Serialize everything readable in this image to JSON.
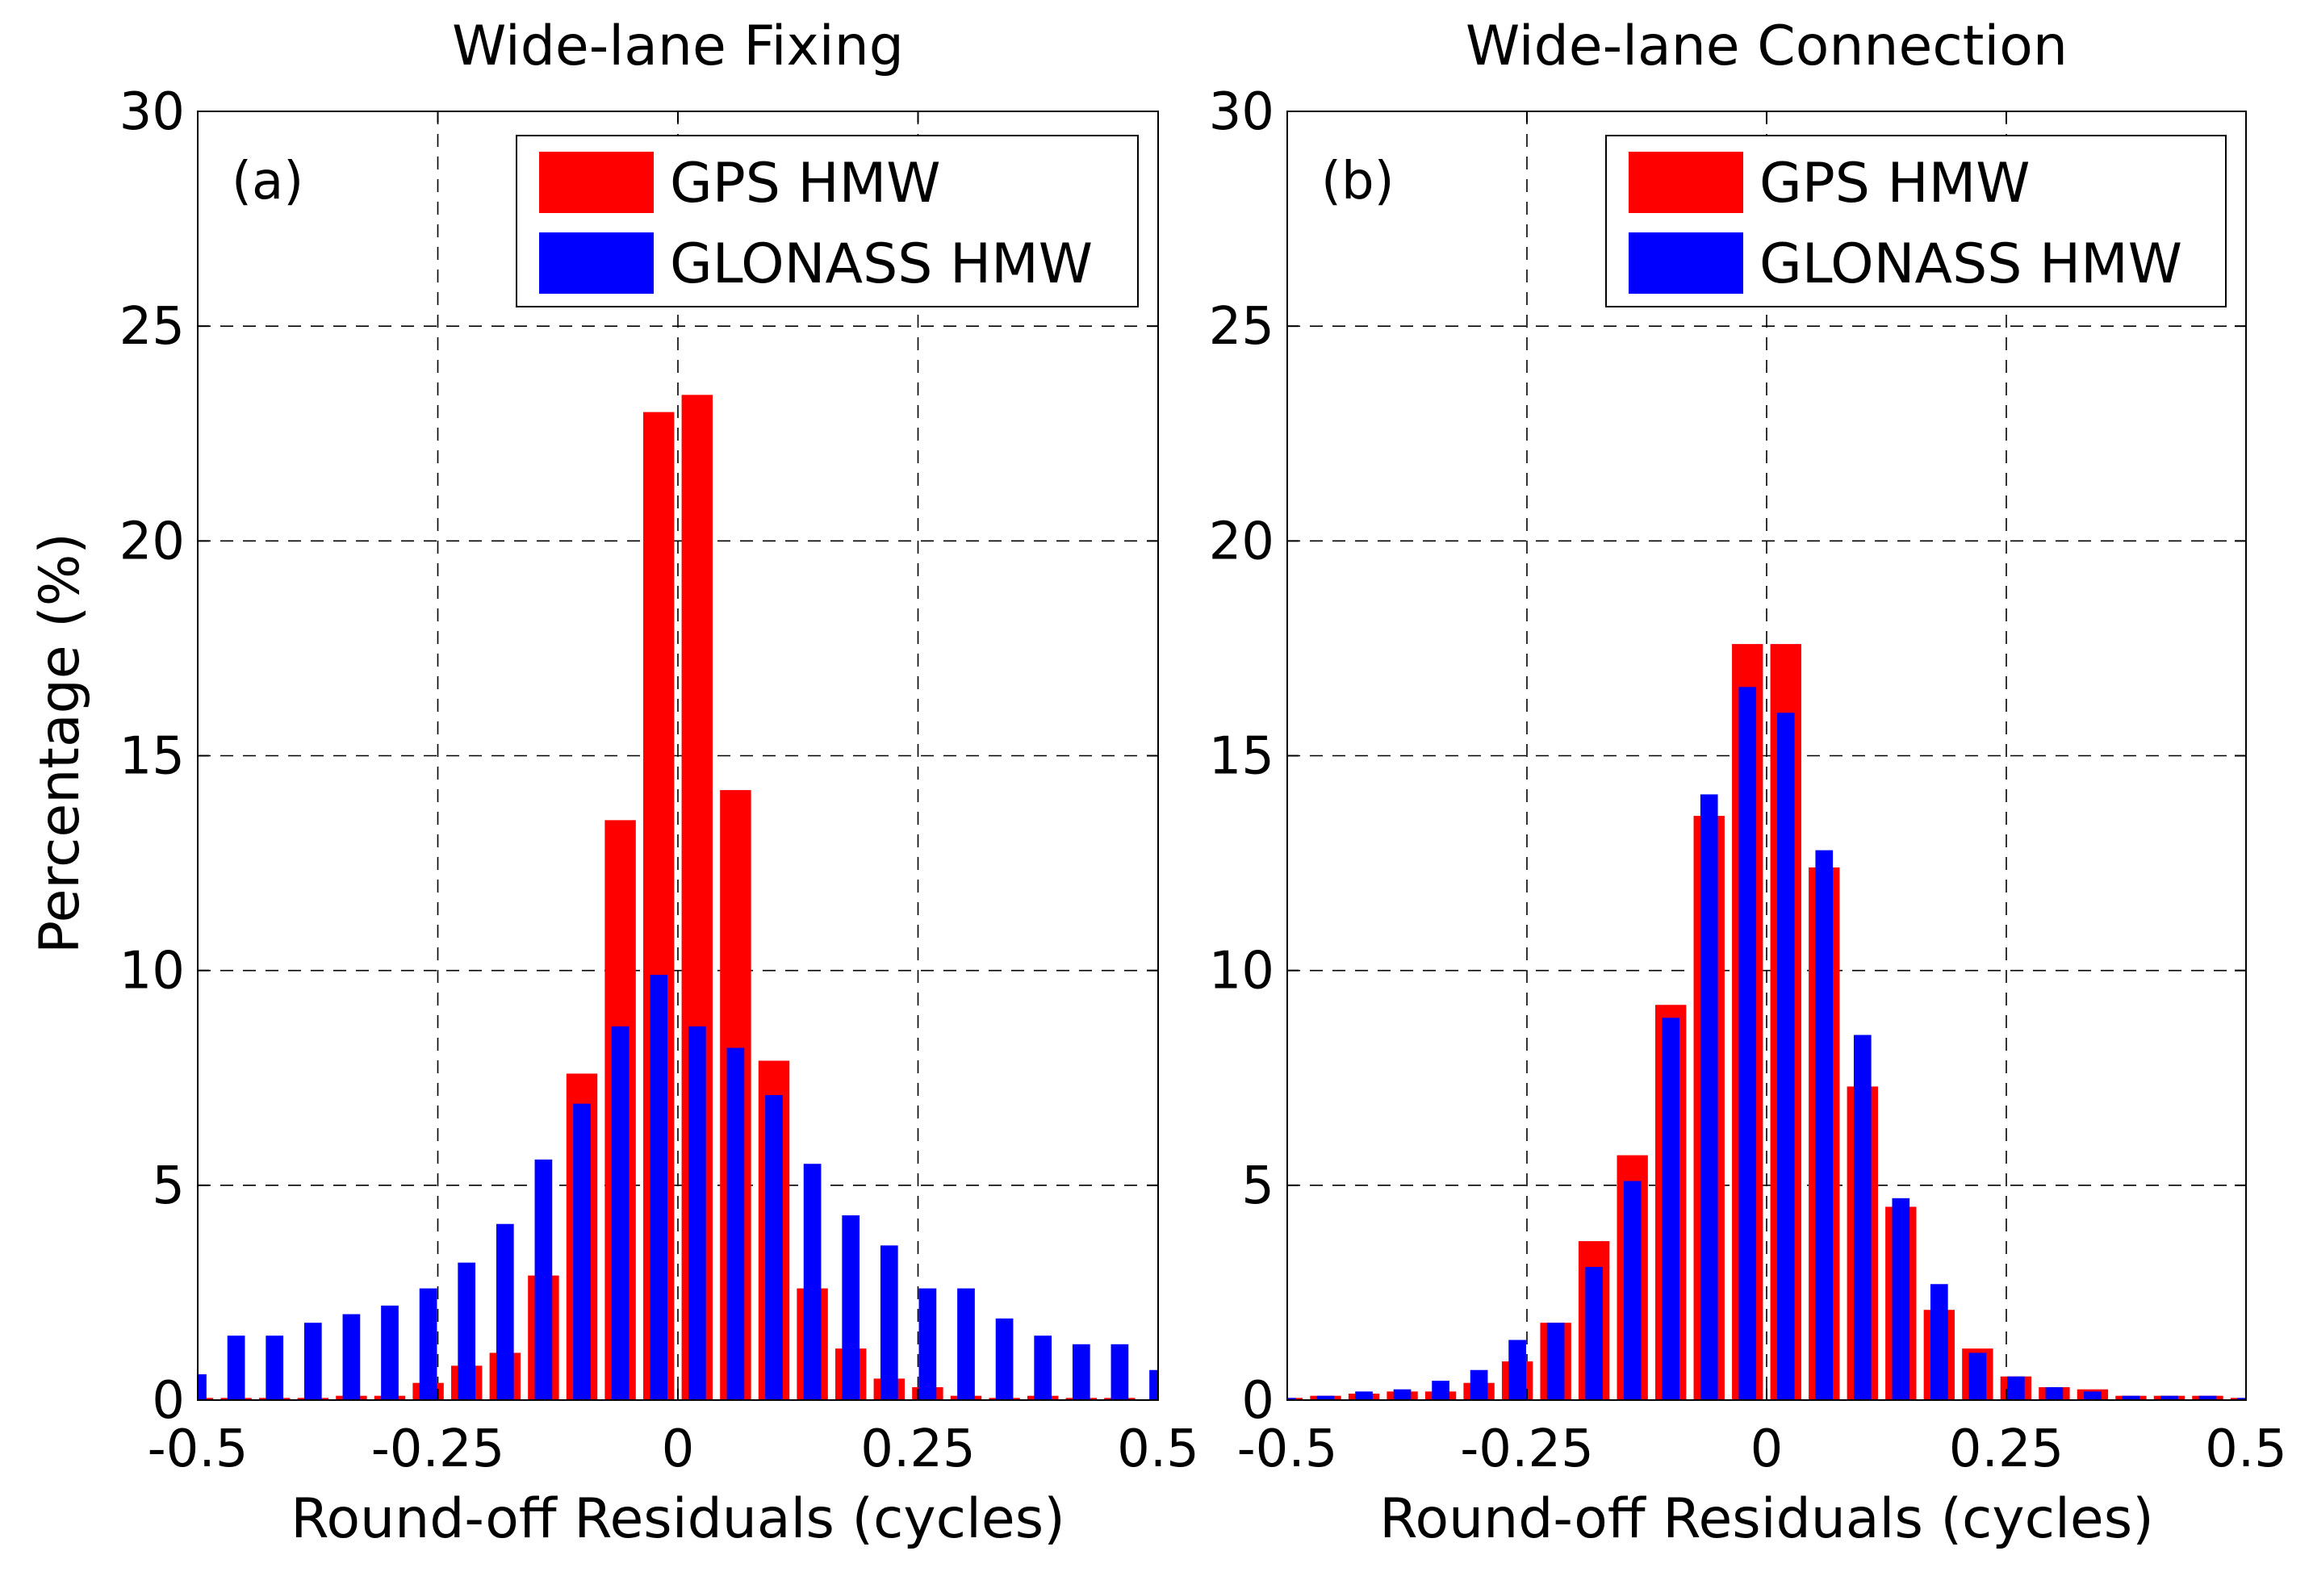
{
  "y_axis_label": "Percentage (%)",
  "colors": {
    "gps": "#ff0000",
    "glonass": "#0000ff"
  },
  "chart_data": [
    {
      "type": "bar",
      "title": "Wide-lane Fixing",
      "panel_label": "(a)",
      "xlabel": "Round-off Residuals (cycles)",
      "ylabel": "Percentage (%)",
      "xlim": [
        -0.5,
        0.5
      ],
      "ylim": [
        0,
        30
      ],
      "xticks": [
        -0.5,
        -0.25,
        0,
        0.25,
        0.5
      ],
      "xtick_labels": [
        "-0.5",
        "-0.25",
        "0",
        "0.25",
        "0.5"
      ],
      "yticks": [
        0,
        5,
        10,
        15,
        20,
        25,
        30
      ],
      "ytick_labels": [
        "0",
        "5",
        "10",
        "15",
        "20",
        "25",
        "30"
      ],
      "grid": true,
      "legend_position": "top-right",
      "bin_width": 0.04,
      "x": [
        -0.5,
        -0.46,
        -0.42,
        -0.38,
        -0.34,
        -0.3,
        -0.26,
        -0.22,
        -0.18,
        -0.14,
        -0.1,
        -0.06,
        -0.02,
        0.02,
        0.06,
        0.1,
        0.14,
        0.18,
        0.22,
        0.26,
        0.3,
        0.34,
        0.38,
        0.42,
        0.46,
        0.5
      ],
      "series": [
        {
          "name": "GPS HMW",
          "values": [
            0.05,
            0.05,
            0.05,
            0.05,
            0.1,
            0.1,
            0.4,
            0.8,
            1.1,
            2.9,
            7.6,
            13.5,
            23.0,
            23.4,
            14.2,
            7.9,
            2.6,
            1.2,
            0.5,
            0.3,
            0.1,
            0.05,
            0.1,
            0.05,
            0.05,
            0.0
          ]
        },
        {
          "name": "GLONASS HMW",
          "values": [
            0.6,
            1.5,
            1.5,
            1.8,
            2.0,
            2.2,
            2.6,
            3.2,
            4.1,
            5.6,
            6.9,
            8.7,
            9.9,
            8.7,
            8.2,
            7.1,
            5.5,
            4.3,
            3.6,
            2.6,
            2.6,
            1.9,
            1.5,
            1.3,
            1.3,
            0.7
          ]
        }
      ]
    },
    {
      "type": "bar",
      "title": "Wide-lane Connection",
      "panel_label": "(b)",
      "xlabel": "Round-off Residuals (cycles)",
      "ylabel": "",
      "xlim": [
        -0.5,
        0.5
      ],
      "ylim": [
        0,
        30
      ],
      "xticks": [
        -0.5,
        -0.25,
        0,
        0.25,
        0.5
      ],
      "xtick_labels": [
        "-0.5",
        "-0.25",
        "0",
        "0.25",
        "0.5"
      ],
      "yticks": [
        0,
        5,
        10,
        15,
        20,
        25,
        30
      ],
      "ytick_labels": [
        "0",
        "5",
        "10",
        "15",
        "20",
        "25",
        "30"
      ],
      "grid": true,
      "legend_position": "top-right",
      "bin_width": 0.04,
      "x": [
        -0.5,
        -0.46,
        -0.42,
        -0.38,
        -0.34,
        -0.3,
        -0.26,
        -0.22,
        -0.18,
        -0.14,
        -0.1,
        -0.06,
        -0.02,
        0.02,
        0.06,
        0.1,
        0.14,
        0.18,
        0.22,
        0.26,
        0.3,
        0.34,
        0.38,
        0.42,
        0.46,
        0.5
      ],
      "series": [
        {
          "name": "GPS HMW",
          "values": [
            0.05,
            0.1,
            0.15,
            0.2,
            0.2,
            0.4,
            0.9,
            1.8,
            3.7,
            5.7,
            9.2,
            13.6,
            17.6,
            17.6,
            12.4,
            7.3,
            4.5,
            2.1,
            1.2,
            0.55,
            0.3,
            0.25,
            0.1,
            0.1,
            0.1,
            0.05
          ]
        },
        {
          "name": "GLONASS HMW",
          "values": [
            0.05,
            0.1,
            0.2,
            0.25,
            0.45,
            0.7,
            1.4,
            1.8,
            3.1,
            5.1,
            8.9,
            14.1,
            16.6,
            16.0,
            12.8,
            8.5,
            4.7,
            2.7,
            1.1,
            0.55,
            0.3,
            0.2,
            0.1,
            0.1,
            0.1,
            0.05
          ]
        }
      ]
    }
  ]
}
